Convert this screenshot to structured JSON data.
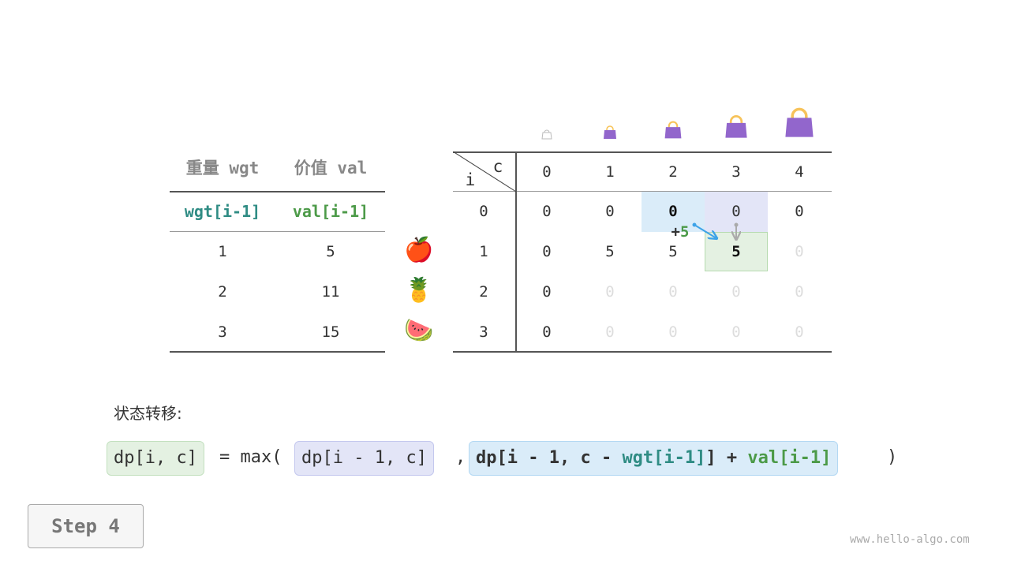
{
  "left_table": {
    "headers": [
      "重量 wgt",
      "价值 val"
    ],
    "subheaders": [
      "wgt[i-1]",
      "val[i-1]"
    ],
    "rows": [
      [
        "1",
        "5"
      ],
      [
        "2",
        "11"
      ],
      [
        "3",
        "15"
      ]
    ]
  },
  "item_icons": [
    "apple-icon",
    "pineapple-icon",
    "watermelon-icon"
  ],
  "item_emoji": [
    "🍎",
    "🍍",
    "🍉"
  ],
  "dp_table": {
    "corner_c": "c",
    "corner_i": "i",
    "capacities": [
      "0",
      "1",
      "2",
      "3",
      "4"
    ],
    "row_labels": [
      "0",
      "1",
      "2",
      "3"
    ],
    "cells": [
      [
        "0",
        "0",
        "0",
        "0",
        "0"
      ],
      [
        "0",
        "5",
        "5",
        "5",
        "0"
      ],
      [
        "0",
        "0",
        "0",
        "0",
        "0"
      ],
      [
        "0",
        "0",
        "0",
        "0",
        "0"
      ]
    ],
    "computed": [
      [
        1,
        1,
        1,
        1,
        1
      ],
      [
        1,
        1,
        1,
        1,
        0
      ],
      [
        1,
        0,
        0,
        0,
        0
      ],
      [
        1,
        0,
        0,
        0,
        0
      ]
    ],
    "current_cell": [
      1,
      3
    ],
    "plus_label": "+",
    "plus_value": "5"
  },
  "transition_label": "状态转移:",
  "formula": {
    "lhs": "dp[i, c]",
    "eq": "= max(",
    "opt1": "dp[i - 1, c]",
    "comma": ",",
    "opt2_a": "dp[i - 1, c - ",
    "opt2_wgt": "wgt[i-1]",
    "opt2_b": "] + ",
    "opt2_val": "val[i-1]",
    "close": ")"
  },
  "step_button": "Step 4",
  "watermark": "www.hello-algo.com",
  "colors": {
    "teal": "#2f8c84",
    "green": "#4c9a48",
    "blue_bg": "#daecf9",
    "purple_bg": "#e3e5f7",
    "green_bg": "#e4f1e2",
    "bag": "#9266cc",
    "handle": "#f7c35a"
  }
}
